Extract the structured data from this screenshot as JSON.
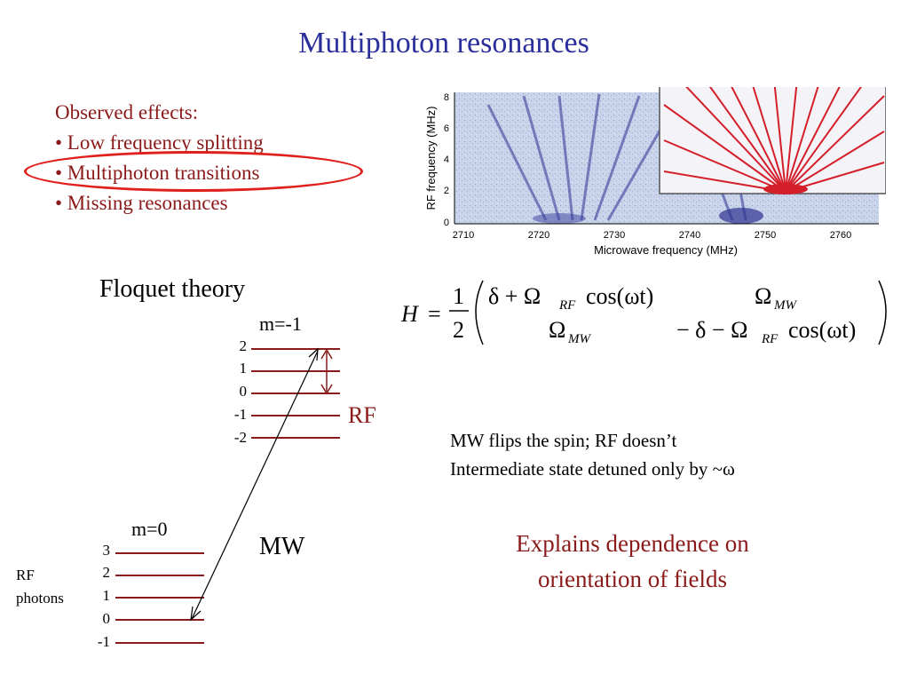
{
  "title": "Multiphoton resonances",
  "observed": {
    "heading": "Observed effects:",
    "items": [
      "• Low frequency splitting",
      "• Multiphoton transitions",
      "• Missing resonances"
    ]
  },
  "floquet": {
    "title": "Floquet theory",
    "upper": {
      "label": "m=-1",
      "levels": [
        "2",
        "1",
        "0",
        "-1",
        "-2"
      ]
    },
    "lower": {
      "label": "m=0",
      "levels": [
        "3",
        "2",
        "1",
        "0",
        "-1"
      ]
    },
    "rf_label": "RF",
    "mw_label": "MW",
    "rf_photons": [
      "RF",
      "photons"
    ]
  },
  "plot": {
    "ylabel": "RF frequency (MHz)",
    "xlabel": "Microwave frequency (MHz)",
    "xticks": [
      "2710",
      "2720",
      "2730",
      "2740",
      "2750",
      "2760"
    ],
    "yticks": [
      "0",
      "2",
      "4",
      "6",
      "8"
    ]
  },
  "equation": {
    "lhs": "H",
    "eq": "=",
    "frac_num": "1",
    "frac_den": "2",
    "m11": "δ + Ω",
    "m11_sub": "RF",
    "m11_tail": "cos(ωt)",
    "m12": "Ω",
    "m12_sub": "MW",
    "m21": "Ω",
    "m21_sub": "MW",
    "m22": "− δ − Ω",
    "m22_sub": "RF",
    "m22_tail": "cos(ωt)"
  },
  "notes": [
    "MW flips the spin; RF doesn’t",
    "Intermediate state detuned only by ~ω"
  ],
  "explains": [
    "Explains dependence on",
    "orientation of fields"
  ],
  "colors": {
    "title": "#2b2f9b",
    "accent": "#8b1a1a",
    "oval": "#e0201c"
  }
}
